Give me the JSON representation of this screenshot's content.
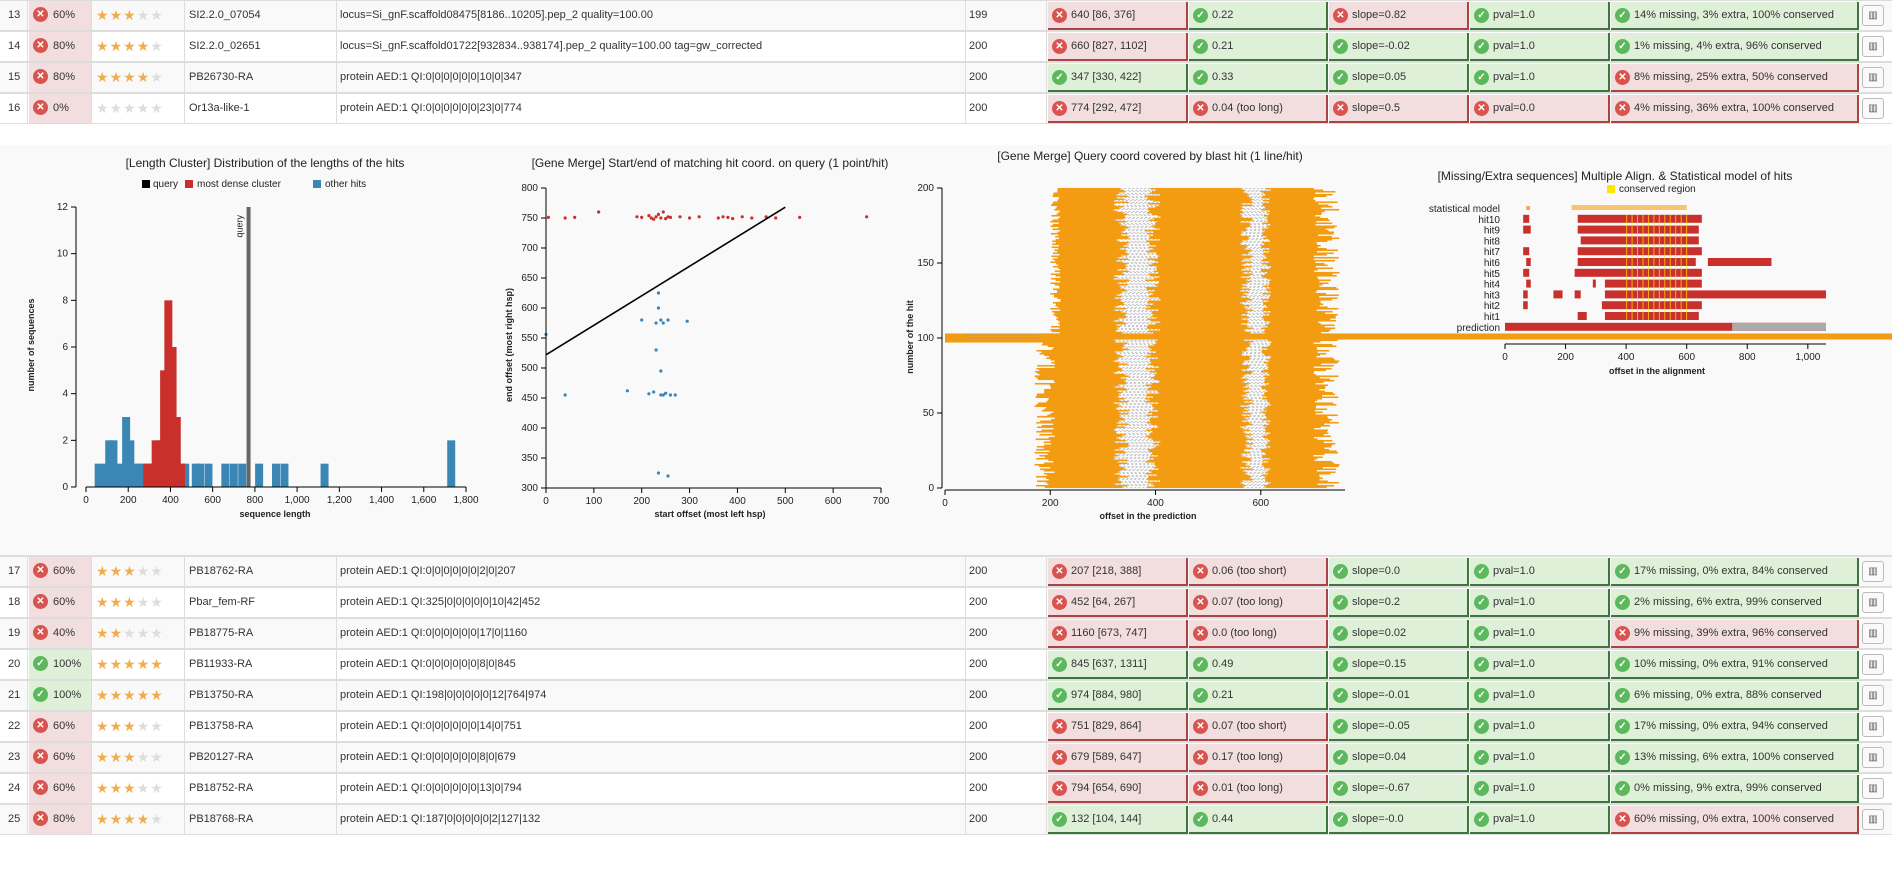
{
  "rows_top": [
    {
      "num": "13",
      "score": "60%",
      "score_ok": false,
      "stars": 3,
      "name": "SI2.2.0_07054",
      "desc": "locus=Si_gnF.scaffold08475[8186..10205].pep_2 quality=100.00",
      "len": "199",
      "t": [
        {
          "ok": false,
          "v": "640 [86, 376]"
        },
        {
          "ok": true,
          "v": "0.22"
        },
        {
          "ok": false,
          "v": "slope=0.82"
        },
        {
          "ok": true,
          "v": "pval=1.0"
        },
        {
          "ok": true,
          "v": "14% missing, 3% extra, 100% conserved"
        }
      ]
    },
    {
      "num": "14",
      "score": "80%",
      "score_ok": false,
      "stars": 4,
      "name": "SI2.2.0_02651",
      "desc": "locus=Si_gnF.scaffold01722[932834..938174].pep_2 quality=100.00 tag=gw_corrected",
      "len": "200",
      "t": [
        {
          "ok": false,
          "v": "660 [827, 1102]"
        },
        {
          "ok": true,
          "v": "0.21"
        },
        {
          "ok": true,
          "v": "slope=-0.02"
        },
        {
          "ok": true,
          "v": "pval=1.0"
        },
        {
          "ok": true,
          "v": "1% missing, 4% extra, 96% conserved"
        }
      ]
    },
    {
      "num": "15",
      "score": "80%",
      "score_ok": false,
      "stars": 4,
      "name": "PB26730-RA",
      "desc": "protein AED:1 QI:0|0|0|0|0|0|10|0|347",
      "len": "200",
      "t": [
        {
          "ok": true,
          "v": "347 [330, 422]"
        },
        {
          "ok": true,
          "v": "0.33"
        },
        {
          "ok": true,
          "v": "slope=0.05"
        },
        {
          "ok": true,
          "v": "pval=1.0"
        },
        {
          "ok": false,
          "v": "8% missing, 25% extra, 50% conserved"
        }
      ]
    },
    {
      "num": "16",
      "score": "0%",
      "score_ok": false,
      "stars": 0,
      "name": "Or13a-like-1",
      "desc": "protein AED:1 QI:0|0|0|0|0|0|23|0|774",
      "len": "200",
      "t": [
        {
          "ok": false,
          "v": "774 [292, 472]"
        },
        {
          "ok": false,
          "v": "0.04 (too long)"
        },
        {
          "ok": false,
          "v": "slope=0.5"
        },
        {
          "ok": false,
          "v": "pval=0.0"
        },
        {
          "ok": false,
          "v": "4% missing, 36% extra, 100% conserved"
        }
      ]
    }
  ],
  "rows_bottom": [
    {
      "num": "17",
      "score": "60%",
      "score_ok": false,
      "stars": 3,
      "name": "PB18762-RA",
      "desc": "protein AED:1 QI:0|0|0|0|0|0|2|0|207",
      "len": "200",
      "t": [
        {
          "ok": false,
          "v": "207 [218, 388]"
        },
        {
          "ok": false,
          "v": "0.06 (too short)"
        },
        {
          "ok": true,
          "v": "slope=0.0"
        },
        {
          "ok": true,
          "v": "pval=1.0"
        },
        {
          "ok": true,
          "v": "17% missing, 0% extra, 84% conserved"
        }
      ]
    },
    {
      "num": "18",
      "score": "60%",
      "score_ok": false,
      "stars": 3,
      "name": "Pbar_fem-RF",
      "desc": "protein AED:1 QI:325|0|0|0|0|0|10|42|452",
      "len": "200",
      "t": [
        {
          "ok": false,
          "v": "452 [64, 267]"
        },
        {
          "ok": false,
          "v": "0.07 (too long)"
        },
        {
          "ok": true,
          "v": "slope=0.2"
        },
        {
          "ok": true,
          "v": "pval=1.0"
        },
        {
          "ok": true,
          "v": "2% missing, 6% extra, 99% conserved"
        }
      ]
    },
    {
      "num": "19",
      "score": "40%",
      "score_ok": false,
      "stars": 2,
      "name": "PB18775-RA",
      "desc": "protein AED:1 QI:0|0|0|0|0|0|17|0|1160",
      "len": "200",
      "t": [
        {
          "ok": false,
          "v": "1160 [673, 747]"
        },
        {
          "ok": false,
          "v": "0.0 (too long)"
        },
        {
          "ok": true,
          "v": "slope=0.02"
        },
        {
          "ok": true,
          "v": "pval=1.0"
        },
        {
          "ok": false,
          "v": "9% missing, 39% extra, 96% conserved"
        }
      ]
    },
    {
      "num": "20",
      "score": "100%",
      "score_ok": true,
      "stars": 5,
      "name": "PB11933-RA",
      "desc": "protein AED:1 QI:0|0|0|0|0|0|8|0|845",
      "len": "200",
      "t": [
        {
          "ok": true,
          "v": "845 [637, 1311]"
        },
        {
          "ok": true,
          "v": "0.49"
        },
        {
          "ok": true,
          "v": "slope=0.15"
        },
        {
          "ok": true,
          "v": "pval=1.0"
        },
        {
          "ok": true,
          "v": "10% missing, 0% extra, 91% conserved"
        }
      ]
    },
    {
      "num": "21",
      "score": "100%",
      "score_ok": true,
      "stars": 5,
      "name": "PB13750-RA",
      "desc": "protein AED:1 QI:198|0|0|0|0|0|12|764|974",
      "len": "200",
      "t": [
        {
          "ok": true,
          "v": "974 [884, 980]"
        },
        {
          "ok": true,
          "v": "0.21"
        },
        {
          "ok": true,
          "v": "slope=-0.01"
        },
        {
          "ok": true,
          "v": "pval=1.0"
        },
        {
          "ok": true,
          "v": "6% missing, 0% extra, 88% conserved"
        }
      ]
    },
    {
      "num": "22",
      "score": "60%",
      "score_ok": false,
      "stars": 3,
      "name": "PB13758-RA",
      "desc": "protein AED:1 QI:0|0|0|0|0|0|14|0|751",
      "len": "200",
      "t": [
        {
          "ok": false,
          "v": "751 [829, 864]"
        },
        {
          "ok": false,
          "v": "0.07 (too short)"
        },
        {
          "ok": true,
          "v": "slope=-0.05"
        },
        {
          "ok": true,
          "v": "pval=1.0"
        },
        {
          "ok": true,
          "v": "17% missing, 0% extra, 94% conserved"
        }
      ]
    },
    {
      "num": "23",
      "score": "60%",
      "score_ok": false,
      "stars": 3,
      "name": "PB20127-RA",
      "desc": "protein AED:1 QI:0|0|0|0|0|0|8|0|679",
      "len": "200",
      "t": [
        {
          "ok": false,
          "v": "679 [589, 647]"
        },
        {
          "ok": false,
          "v": "0.17 (too long)"
        },
        {
          "ok": true,
          "v": "slope=0.04"
        },
        {
          "ok": true,
          "v": "pval=1.0"
        },
        {
          "ok": true,
          "v": "13% missing, 6% extra, 100% conserved"
        }
      ]
    },
    {
      "num": "24",
      "score": "60%",
      "score_ok": false,
      "stars": 3,
      "name": "PB18752-RA",
      "desc": "protein AED:1 QI:0|0|0|0|0|0|13|0|794",
      "len": "200",
      "t": [
        {
          "ok": false,
          "v": "794 [654, 690]"
        },
        {
          "ok": false,
          "v": "0.01 (too long)"
        },
        {
          "ok": true,
          "v": "slope=-0.67"
        },
        {
          "ok": true,
          "v": "pval=1.0"
        },
        {
          "ok": true,
          "v": "0% missing, 9% extra, 99% conserved"
        }
      ]
    },
    {
      "num": "25",
      "score": "80%",
      "score_ok": false,
      "stars": 4,
      "name": "PB18768-RA",
      "desc": "protein AED:1 QI:187|0|0|0|0|0|2|127|132",
      "len": "200",
      "t": [
        {
          "ok": true,
          "v": "132 [104, 144]"
        },
        {
          "ok": true,
          "v": "0.44"
        },
        {
          "ok": true,
          "v": "slope=-0.0"
        },
        {
          "ok": true,
          "v": "pval=1.0"
        },
        {
          "ok": false,
          "v": "60% missing, 0% extra, 100% conserved"
        }
      ]
    }
  ],
  "colors": {
    "ok_bg": "#dff0d8",
    "bad_bg": "#f2dede",
    "star": "#f0ad4e",
    "query": "#000000",
    "dense": "#c9302c",
    "other": "#3a87b5",
    "orange": "#f39c12"
  },
  "chart_data": [
    {
      "type": "bar",
      "title": "[Length Cluster] Distribution of the lengths of the hits",
      "legend": [
        "query",
        "most dense cluster",
        "other hits"
      ],
      "xlabel": "sequence length",
      "ylabel": "number of sequences",
      "xlim": [
        0,
        1800
      ],
      "ylim": [
        0,
        12
      ],
      "query_marker": "query",
      "query_x": 770,
      "xticks": [
        "0",
        "200",
        "400",
        "600",
        "800",
        "1,000",
        "1,200",
        "1,400",
        "1,600",
        "1,800"
      ],
      "yticks": [
        "0",
        "2",
        "4",
        "6",
        "8",
        "10",
        "12"
      ],
      "dense_bars": [
        [
          290,
          1
        ],
        [
          310,
          1
        ],
        [
          330,
          2
        ],
        [
          350,
          2
        ],
        [
          370,
          5
        ],
        [
          390,
          8
        ],
        [
          410,
          6
        ],
        [
          430,
          3
        ],
        [
          450,
          1
        ]
      ],
      "other_bars": [
        [
          60,
          1
        ],
        [
          90,
          1
        ],
        [
          110,
          2
        ],
        [
          130,
          2
        ],
        [
          160,
          1
        ],
        [
          190,
          3
        ],
        [
          210,
          2
        ],
        [
          230,
          1
        ],
        [
          250,
          1
        ],
        [
          270,
          1
        ],
        [
          470,
          1
        ],
        [
          520,
          1
        ],
        [
          540,
          1
        ],
        [
          580,
          1
        ],
        [
          660,
          1
        ],
        [
          700,
          1
        ],
        [
          740,
          1
        ],
        [
          820,
          1
        ],
        [
          900,
          1
        ],
        [
          940,
          1
        ],
        [
          1130,
          1
        ],
        [
          1730,
          2
        ]
      ]
    },
    {
      "type": "scatter",
      "title": "[Gene Merge] Start/end of matching hit coord. on query (1 point/hit)",
      "xlabel": "start offset (most left hsp)",
      "ylabel": "end offset (most right hsp)",
      "xlim": [
        0,
        700
      ],
      "ylim": [
        300,
        800
      ],
      "xticks": [
        "0",
        "100",
        "200",
        "300",
        "400",
        "500",
        "600",
        "700"
      ],
      "yticks": [
        "300",
        "350",
        "400",
        "450",
        "500",
        "550",
        "600",
        "650",
        "700",
        "750",
        "800"
      ],
      "fit_line": [
        [
          0,
          522
        ],
        [
          500,
          768
        ]
      ],
      "red_points": [
        [
          5,
          751
        ],
        [
          40,
          750
        ],
        [
          60,
          751
        ],
        [
          110,
          760
        ],
        [
          190,
          752
        ],
        [
          200,
          751
        ],
        [
          215,
          754
        ],
        [
          220,
          750
        ],
        [
          225,
          748
        ],
        [
          230,
          752
        ],
        [
          235,
          756
        ],
        [
          240,
          750
        ],
        [
          245,
          760
        ],
        [
          250,
          749
        ],
        [
          255,
          752
        ],
        [
          260,
          751
        ],
        [
          280,
          752
        ],
        [
          300,
          750
        ],
        [
          320,
          752
        ],
        [
          360,
          750
        ],
        [
          370,
          752
        ],
        [
          380,
          751
        ],
        [
          390,
          749
        ],
        [
          410,
          752
        ],
        [
          430,
          750
        ],
        [
          460,
          752
        ],
        [
          480,
          750
        ],
        [
          530,
          751
        ],
        [
          670,
          752
        ]
      ],
      "blue_points": [
        [
          0,
          556
        ],
        [
          40,
          455
        ],
        [
          170,
          462
        ],
        [
          200,
          580
        ],
        [
          215,
          457
        ],
        [
          225,
          460
        ],
        [
          230,
          530
        ],
        [
          230,
          575
        ],
        [
          235,
          600
        ],
        [
          235,
          625
        ],
        [
          240,
          455
        ],
        [
          240,
          495
        ],
        [
          240,
          580
        ],
        [
          245,
          455
        ],
        [
          245,
          575
        ],
        [
          250,
          458
        ],
        [
          255,
          580
        ],
        [
          260,
          455
        ],
        [
          270,
          455
        ],
        [
          295,
          578
        ],
        [
          235,
          325
        ],
        [
          255,
          320
        ]
      ]
    },
    {
      "type": "bar",
      "title": "[Gene Merge] Query coord covered by blast hit (1 line/hit)",
      "xlabel": "offset in the prediction",
      "ylabel": "number of the hit",
      "xlim": [
        0,
        760
      ],
      "ylim": [
        0,
        200
      ],
      "xticks": [
        "0",
        "200",
        "400",
        "600"
      ],
      "yticks": [
        "0",
        "50",
        "100",
        "150",
        "200"
      ]
    },
    {
      "type": "heatmap",
      "title": "[Missing/Extra sequences] Multiple Align. & Statistical model of hits",
      "legend": [
        "conserved region"
      ],
      "xlabel": "offset in the alignment",
      "xlim": [
        0,
        1060
      ],
      "xticks": [
        "0",
        "200",
        "400",
        "600",
        "800",
        "1,000"
      ],
      "rows": [
        "statistical model",
        "hit10",
        "hit9",
        "hit8",
        "hit7",
        "hit6",
        "hit5",
        "hit4",
        "hit3",
        "hit2",
        "hit1",
        "prediction"
      ]
    }
  ]
}
